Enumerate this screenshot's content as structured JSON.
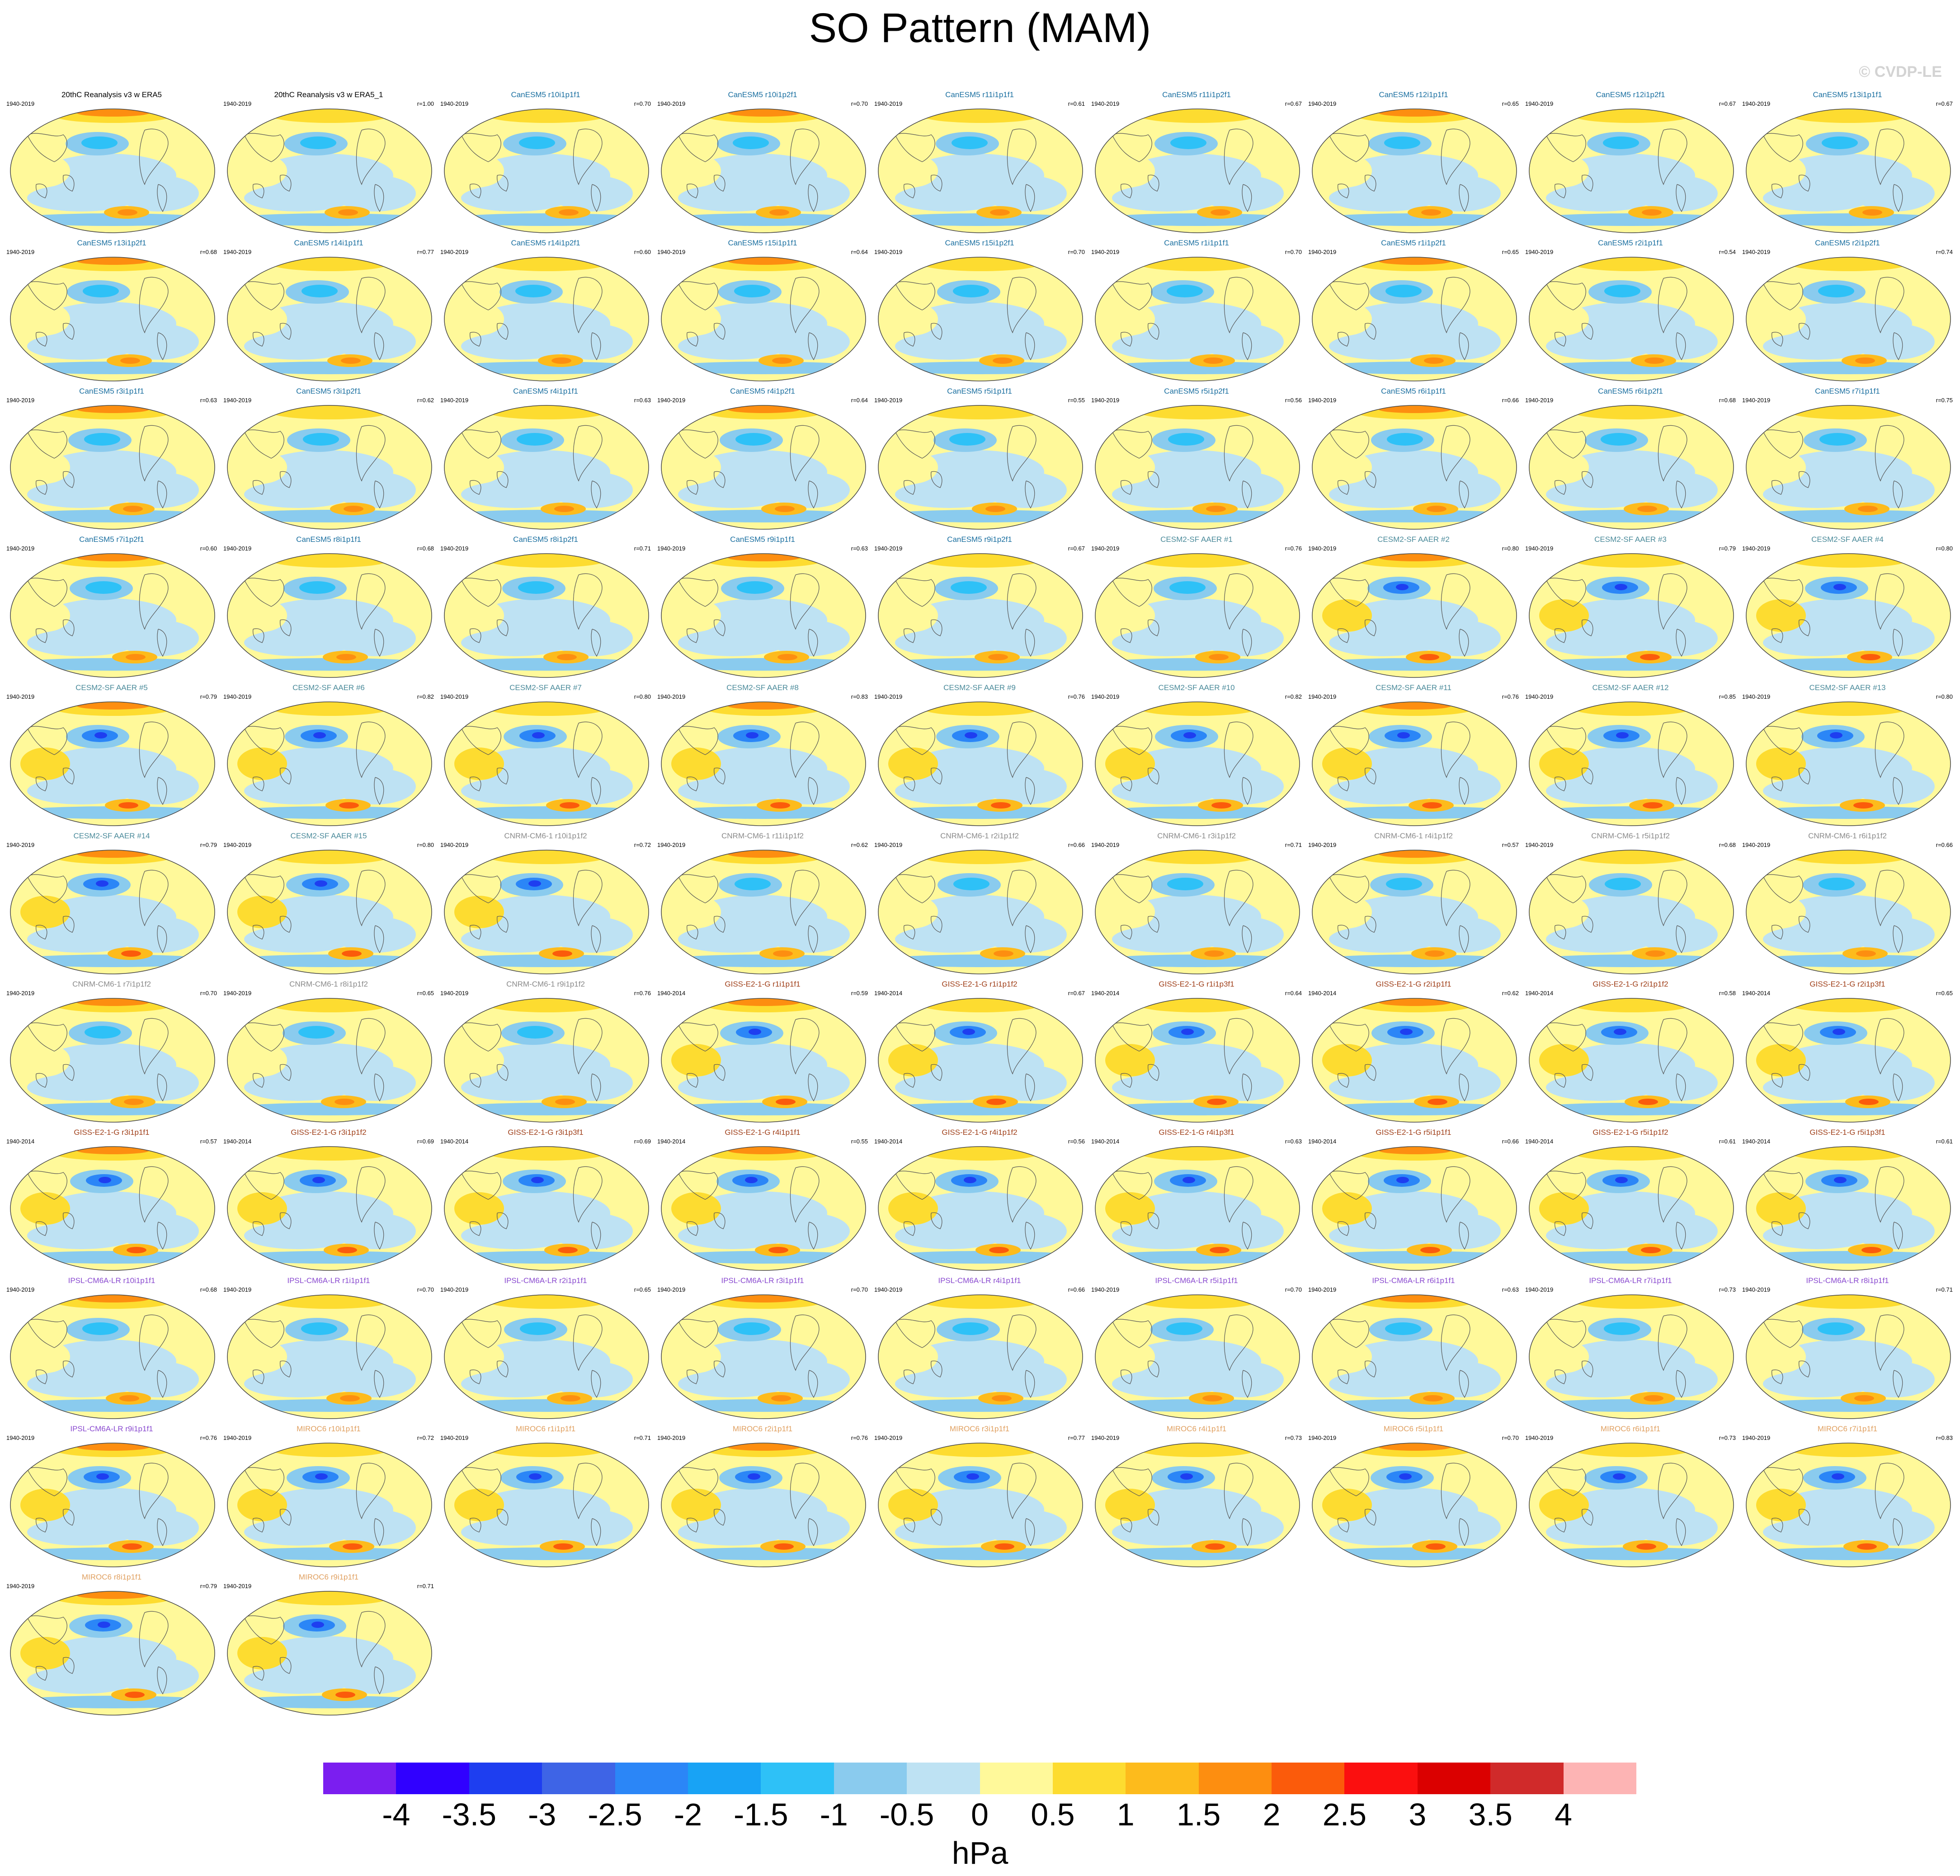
{
  "title": "SO Pattern (MAM)",
  "watermark": "© CVDP-LE",
  "units": "hPa",
  "colorbar": {
    "colors": [
      "#7b1ef0",
      "#3000ff",
      "#1e3ef0",
      "#3e64e6",
      "#2b86f7",
      "#18a3f5",
      "#2ec1f7",
      "#8acbee",
      "#bee2f3",
      "#fff99a",
      "#fddc30",
      "#fdbb1c",
      "#fd8e10",
      "#fb5b0b",
      "#fb0f0f",
      "#db0000",
      "#d02a2a",
      "#fdb4b4"
    ],
    "labels": [
      "-4",
      "-3.5",
      "-3",
      "-2.5",
      "-2",
      "-1.5",
      "-1",
      "-0.5",
      "0",
      "0.5",
      "1",
      "1.5",
      "2",
      "2.5",
      "3",
      "3.5",
      "4"
    ]
  },
  "panels": [
    {
      "title": "20thC Reanalysis v3 w ERA5",
      "years": "1940-2019",
      "r": "",
      "color": "#000000"
    },
    {
      "title": "20thC Reanalysis v3 w ERA5_1",
      "years": "1940-2019",
      "r": "r=1.00",
      "color": "#000000"
    },
    {
      "title": "CanESM5 r10i1p1f1",
      "years": "1940-2019",
      "r": "r=0.70",
      "color": "#1a6fa0"
    },
    {
      "title": "CanESM5 r10i1p2f1",
      "years": "1940-2019",
      "r": "r=0.70",
      "color": "#1a6fa0"
    },
    {
      "title": "CanESM5 r11i1p1f1",
      "years": "1940-2019",
      "r": "r=0.61",
      "color": "#1a6fa0"
    },
    {
      "title": "CanESM5 r11i1p2f1",
      "years": "1940-2019",
      "r": "r=0.67",
      "color": "#1a6fa0"
    },
    {
      "title": "CanESM5 r12i1p1f1",
      "years": "1940-2019",
      "r": "r=0.65",
      "color": "#1a6fa0"
    },
    {
      "title": "CanESM5 r12i1p2f1",
      "years": "1940-2019",
      "r": "r=0.67",
      "color": "#1a6fa0"
    },
    {
      "title": "CanESM5 r13i1p1f1",
      "years": "1940-2019",
      "r": "r=0.67",
      "color": "#1a6fa0"
    },
    {
      "title": "CanESM5 r13i1p2f1",
      "years": "1940-2019",
      "r": "r=0.68",
      "color": "#1a6fa0"
    },
    {
      "title": "CanESM5 r14i1p1f1",
      "years": "1940-2019",
      "r": "r=0.77",
      "color": "#1a6fa0"
    },
    {
      "title": "CanESM5 r14i1p2f1",
      "years": "1940-2019",
      "r": "r=0.60",
      "color": "#1a6fa0"
    },
    {
      "title": "CanESM5 r15i1p1f1",
      "years": "1940-2019",
      "r": "r=0.64",
      "color": "#1a6fa0"
    },
    {
      "title": "CanESM5 r15i1p2f1",
      "years": "1940-2019",
      "r": "r=0.70",
      "color": "#1a6fa0"
    },
    {
      "title": "CanESM5 r1i1p1f1",
      "years": "1940-2019",
      "r": "r=0.70",
      "color": "#1a6fa0"
    },
    {
      "title": "CanESM5 r1i1p2f1",
      "years": "1940-2019",
      "r": "r=0.65",
      "color": "#1a6fa0"
    },
    {
      "title": "CanESM5 r2i1p1f1",
      "years": "1940-2019",
      "r": "r=0.54",
      "color": "#1a6fa0"
    },
    {
      "title": "CanESM5 r2i1p2f1",
      "years": "1940-2019",
      "r": "r=0.74",
      "color": "#1a6fa0"
    },
    {
      "title": "CanESM5 r3i1p1f1",
      "years": "1940-2019",
      "r": "r=0.63",
      "color": "#1a6fa0"
    },
    {
      "title": "CanESM5 r3i1p2f1",
      "years": "1940-2019",
      "r": "r=0.62",
      "color": "#1a6fa0"
    },
    {
      "title": "CanESM5 r4i1p1f1",
      "years": "1940-2019",
      "r": "r=0.63",
      "color": "#1a6fa0"
    },
    {
      "title": "CanESM5 r4i1p2f1",
      "years": "1940-2019",
      "r": "r=0.64",
      "color": "#1a6fa0"
    },
    {
      "title": "CanESM5 r5i1p1f1",
      "years": "1940-2019",
      "r": "r=0.55",
      "color": "#1a6fa0"
    },
    {
      "title": "CanESM5 r5i1p2f1",
      "years": "1940-2019",
      "r": "r=0.56",
      "color": "#1a6fa0"
    },
    {
      "title": "CanESM5 r6i1p1f1",
      "years": "1940-2019",
      "r": "r=0.66",
      "color": "#1a6fa0"
    },
    {
      "title": "CanESM5 r6i1p2f1",
      "years": "1940-2019",
      "r": "r=0.68",
      "color": "#1a6fa0"
    },
    {
      "title": "CanESM5 r7i1p1f1",
      "years": "1940-2019",
      "r": "r=0.75",
      "color": "#1a6fa0"
    },
    {
      "title": "CanESM5 r7i1p2f1",
      "years": "1940-2019",
      "r": "r=0.60",
      "color": "#1a6fa0"
    },
    {
      "title": "CanESM5 r8i1p1f1",
      "years": "1940-2019",
      "r": "r=0.68",
      "color": "#1a6fa0"
    },
    {
      "title": "CanESM5 r8i1p2f1",
      "years": "1940-2019",
      "r": "r=0.71",
      "color": "#1a6fa0"
    },
    {
      "title": "CanESM5 r9i1p1f1",
      "years": "1940-2019",
      "r": "r=0.63",
      "color": "#1a6fa0"
    },
    {
      "title": "CanESM5 r9i1p2f1",
      "years": "1940-2019",
      "r": "r=0.67",
      "color": "#1a6fa0"
    },
    {
      "title": "CESM2-SF AAER #1",
      "years": "1940-2019",
      "r": "r=0.76",
      "color": "#4a8a9a"
    },
    {
      "title": "CESM2-SF AAER #2",
      "years": "1940-2019",
      "r": "r=0.80",
      "color": "#4a8a9a"
    },
    {
      "title": "CESM2-SF AAER #3",
      "years": "1940-2019",
      "r": "r=0.79",
      "color": "#4a8a9a"
    },
    {
      "title": "CESM2-SF AAER #4",
      "years": "1940-2019",
      "r": "r=0.80",
      "color": "#4a8a9a"
    },
    {
      "title": "CESM2-SF AAER #5",
      "years": "1940-2019",
      "r": "r=0.79",
      "color": "#4a8a9a"
    },
    {
      "title": "CESM2-SF AAER #6",
      "years": "1940-2019",
      "r": "r=0.82",
      "color": "#4a8a9a"
    },
    {
      "title": "CESM2-SF AAER #7",
      "years": "1940-2019",
      "r": "r=0.80",
      "color": "#4a8a9a"
    },
    {
      "title": "CESM2-SF AAER #8",
      "years": "1940-2019",
      "r": "r=0.83",
      "color": "#4a8a9a"
    },
    {
      "title": "CESM2-SF AAER #9",
      "years": "1940-2019",
      "r": "r=0.76",
      "color": "#4a8a9a"
    },
    {
      "title": "CESM2-SF AAER #10",
      "years": "1940-2019",
      "r": "r=0.82",
      "color": "#4a8a9a"
    },
    {
      "title": "CESM2-SF AAER #11",
      "years": "1940-2019",
      "r": "r=0.76",
      "color": "#4a8a9a"
    },
    {
      "title": "CESM2-SF AAER #12",
      "years": "1940-2019",
      "r": "r=0.85",
      "color": "#4a8a9a"
    },
    {
      "title": "CESM2-SF AAER #13",
      "years": "1940-2019",
      "r": "r=0.80",
      "color": "#4a8a9a"
    },
    {
      "title": "CESM2-SF AAER #14",
      "years": "1940-2019",
      "r": "r=0.79",
      "color": "#4a8a9a"
    },
    {
      "title": "CESM2-SF AAER #15",
      "years": "1940-2019",
      "r": "r=0.80",
      "color": "#4a8a9a"
    },
    {
      "title": "CNRM-CM6-1 r10i1p1f2",
      "years": "1940-2019",
      "r": "r=0.72",
      "color": "#8a8a8a"
    },
    {
      "title": "CNRM-CM6-1 r11i1p1f2",
      "years": "1940-2019",
      "r": "r=0.62",
      "color": "#8a8a8a"
    },
    {
      "title": "CNRM-CM6-1 r2i1p1f2",
      "years": "1940-2019",
      "r": "r=0.66",
      "color": "#8a8a8a"
    },
    {
      "title": "CNRM-CM6-1 r3i1p1f2",
      "years": "1940-2019",
      "r": "r=0.71",
      "color": "#8a8a8a"
    },
    {
      "title": "CNRM-CM6-1 r4i1p1f2",
      "years": "1940-2019",
      "r": "r=0.57",
      "color": "#8a8a8a"
    },
    {
      "title": "CNRM-CM6-1 r5i1p1f2",
      "years": "1940-2019",
      "r": "r=0.68",
      "color": "#8a8a8a"
    },
    {
      "title": "CNRM-CM6-1 r6i1p1f2",
      "years": "1940-2019",
      "r": "r=0.66",
      "color": "#8a8a8a"
    },
    {
      "title": "CNRM-CM6-1 r7i1p1f2",
      "years": "1940-2019",
      "r": "r=0.70",
      "color": "#8a8a8a"
    },
    {
      "title": "CNRM-CM6-1 r8i1p1f2",
      "years": "1940-2019",
      "r": "r=0.65",
      "color": "#8a8a8a"
    },
    {
      "title": "CNRM-CM6-1 r9i1p1f2",
      "years": "1940-2019",
      "r": "r=0.76",
      "color": "#8a8a8a"
    },
    {
      "title": "GISS-E2-1-G r1i1p1f1",
      "years": "1940-2014",
      "r": "r=0.59",
      "color": "#a0401a"
    },
    {
      "title": "GISS-E2-1-G r1i1p1f2",
      "years": "1940-2014",
      "r": "r=0.67",
      "color": "#a0401a"
    },
    {
      "title": "GISS-E2-1-G r1i1p3f1",
      "years": "1940-2014",
      "r": "r=0.64",
      "color": "#a0401a"
    },
    {
      "title": "GISS-E2-1-G r2i1p1f1",
      "years": "1940-2014",
      "r": "r=0.62",
      "color": "#a0401a"
    },
    {
      "title": "GISS-E2-1-G r2i1p1f2",
      "years": "1940-2014",
      "r": "r=0.58",
      "color": "#a0401a"
    },
    {
      "title": "GISS-E2-1-G r2i1p3f1",
      "years": "1940-2014",
      "r": "r=0.65",
      "color": "#a0401a"
    },
    {
      "title": "GISS-E2-1-G r3i1p1f1",
      "years": "1940-2014",
      "r": "r=0.57",
      "color": "#a0401a"
    },
    {
      "title": "GISS-E2-1-G r3i1p1f2",
      "years": "1940-2014",
      "r": "r=0.69",
      "color": "#a0401a"
    },
    {
      "title": "GISS-E2-1-G r3i1p3f1",
      "years": "1940-2014",
      "r": "r=0.69",
      "color": "#a0401a"
    },
    {
      "title": "GISS-E2-1-G r4i1p1f1",
      "years": "1940-2014",
      "r": "r=0.55",
      "color": "#a0401a"
    },
    {
      "title": "GISS-E2-1-G r4i1p1f2",
      "years": "1940-2014",
      "r": "r=0.56",
      "color": "#a0401a"
    },
    {
      "title": "GISS-E2-1-G r4i1p3f1",
      "years": "1940-2014",
      "r": "r=0.63",
      "color": "#a0401a"
    },
    {
      "title": "GISS-E2-1-G r5i1p1f1",
      "years": "1940-2014",
      "r": "r=0.66",
      "color": "#a0401a"
    },
    {
      "title": "GISS-E2-1-G r5i1p1f2",
      "years": "1940-2014",
      "r": "r=0.61",
      "color": "#a0401a"
    },
    {
      "title": "GISS-E2-1-G r5i1p3f1",
      "years": "1940-2014",
      "r": "r=0.61",
      "color": "#a0401a"
    },
    {
      "title": "IPSL-CM6A-LR r10i1p1f1",
      "years": "1940-2019",
      "r": "r=0.68",
      "color": "#8a4ad0"
    },
    {
      "title": "IPSL-CM6A-LR r1i1p1f1",
      "years": "1940-2019",
      "r": "r=0.70",
      "color": "#8a4ad0"
    },
    {
      "title": "IPSL-CM6A-LR r2i1p1f1",
      "years": "1940-2019",
      "r": "r=0.65",
      "color": "#8a4ad0"
    },
    {
      "title": "IPSL-CM6A-LR r3i1p1f1",
      "years": "1940-2019",
      "r": "r=0.70",
      "color": "#8a4ad0"
    },
    {
      "title": "IPSL-CM6A-LR r4i1p1f1",
      "years": "1940-2019",
      "r": "r=0.66",
      "color": "#8a4ad0"
    },
    {
      "title": "IPSL-CM6A-LR r5i1p1f1",
      "years": "1940-2019",
      "r": "r=0.70",
      "color": "#8a4ad0"
    },
    {
      "title": "IPSL-CM6A-LR r6i1p1f1",
      "years": "1940-2019",
      "r": "r=0.63",
      "color": "#8a4ad0"
    },
    {
      "title": "IPSL-CM6A-LR r7i1p1f1",
      "years": "1940-2019",
      "r": "r=0.73",
      "color": "#8a4ad0"
    },
    {
      "title": "IPSL-CM6A-LR r8i1p1f1",
      "years": "1940-2019",
      "r": "r=0.71",
      "color": "#8a4ad0"
    },
    {
      "title": "IPSL-CM6A-LR r9i1p1f1",
      "years": "1940-2019",
      "r": "r=0.76",
      "color": "#8a4ad0"
    },
    {
      "title": "MIROC6 r10i1p1f1",
      "years": "1940-2019",
      "r": "r=0.72",
      "color": "#e0a060"
    },
    {
      "title": "MIROC6 r1i1p1f1",
      "years": "1940-2019",
      "r": "r=0.71",
      "color": "#e0a060"
    },
    {
      "title": "MIROC6 r2i1p1f1",
      "years": "1940-2019",
      "r": "r=0.76",
      "color": "#e0a060"
    },
    {
      "title": "MIROC6 r3i1p1f1",
      "years": "1940-2019",
      "r": "r=0.77",
      "color": "#e0a060"
    },
    {
      "title": "MIROC6 r4i1p1f1",
      "years": "1940-2019",
      "r": "r=0.73",
      "color": "#e0a060"
    },
    {
      "title": "MIROC6 r5i1p1f1",
      "years": "1940-2019",
      "r": "r=0.70",
      "color": "#e0a060"
    },
    {
      "title": "MIROC6 r6i1p1f1",
      "years": "1940-2019",
      "r": "r=0.73",
      "color": "#e0a060"
    },
    {
      "title": "MIROC6 r7i1p1f1",
      "years": "1940-2019",
      "r": "r=0.83",
      "color": "#e0a060"
    },
    {
      "title": "MIROC6 r8i1p1f1",
      "years": "1940-2019",
      "r": "r=0.79",
      "color": "#e0a060"
    },
    {
      "title": "MIROC6 r9i1p1f1",
      "years": "1940-2019",
      "r": "r=0.71",
      "color": "#e0a060"
    }
  ]
}
